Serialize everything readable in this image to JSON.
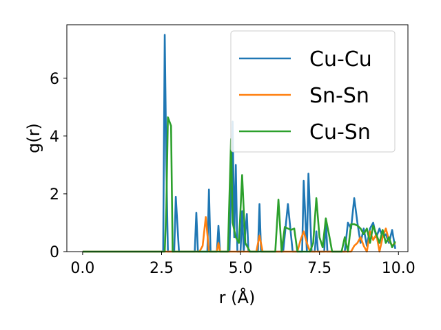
{
  "chart_data": {
    "type": "line",
    "xlabel": "r (Å)",
    "ylabel": "g(r)",
    "xlim": [
      -0.5,
      10.3
    ],
    "ylim": [
      0,
      7.85
    ],
    "xticks": [
      0.0,
      2.5,
      5.0,
      7.5,
      10.0
    ],
    "xtick_labels": [
      "0.0",
      "2.5",
      "5.0",
      "7.5",
      "10.0"
    ],
    "yticks": [
      0,
      2,
      4,
      6
    ],
    "ytick_labels": [
      "0",
      "2",
      "4",
      "6"
    ],
    "grid": false,
    "legend": "top-right",
    "series": [
      {
        "name": "Cu-Cu",
        "color": "#1f77b4",
        "points": [
          [
            0,
            0
          ],
          [
            2.5,
            0
          ],
          [
            2.55,
            0
          ],
          [
            2.6,
            7.5
          ],
          [
            2.65,
            3.0
          ],
          [
            2.7,
            0
          ],
          [
            2.9,
            0
          ],
          [
            2.95,
            1.9
          ],
          [
            3.05,
            0
          ],
          [
            3.55,
            0
          ],
          [
            3.6,
            1.35
          ],
          [
            3.65,
            0
          ],
          [
            3.95,
            0
          ],
          [
            4.0,
            2.15
          ],
          [
            4.05,
            0
          ],
          [
            4.25,
            0
          ],
          [
            4.3,
            0.9
          ],
          [
            4.35,
            0
          ],
          [
            4.65,
            0
          ],
          [
            4.75,
            4.5
          ],
          [
            4.8,
            0.5
          ],
          [
            4.85,
            3.0
          ],
          [
            4.9,
            0
          ],
          [
            5.0,
            0
          ],
          [
            5.05,
            1.4
          ],
          [
            5.1,
            0
          ],
          [
            5.2,
            1.3
          ],
          [
            5.25,
            0
          ],
          [
            5.55,
            0
          ],
          [
            5.6,
            1.65
          ],
          [
            5.65,
            0
          ],
          [
            6.35,
            0
          ],
          [
            6.5,
            1.65
          ],
          [
            6.65,
            0
          ],
          [
            6.95,
            0
          ],
          [
            7.0,
            2.45
          ],
          [
            7.1,
            0
          ],
          [
            7.15,
            2.7
          ],
          [
            7.25,
            0
          ],
          [
            7.35,
            0
          ],
          [
            7.4,
            0.7
          ],
          [
            7.45,
            0
          ],
          [
            7.65,
            0
          ],
          [
            7.7,
            1.1
          ],
          [
            7.75,
            0
          ],
          [
            8.3,
            0
          ],
          [
            8.4,
            1.0
          ],
          [
            8.5,
            0.8
          ],
          [
            8.6,
            1.85
          ],
          [
            8.7,
            1.0
          ],
          [
            8.8,
            0.3
          ],
          [
            8.9,
            0.8
          ],
          [
            9.0,
            0.2
          ],
          [
            9.1,
            0.8
          ],
          [
            9.2,
            1.0
          ],
          [
            9.3,
            0.5
          ],
          [
            9.4,
            0.8
          ],
          [
            9.5,
            0.5
          ],
          [
            9.6,
            0.6
          ],
          [
            9.7,
            0.3
          ],
          [
            9.8,
            0.75
          ],
          [
            9.9,
            0.1
          ]
        ]
      },
      {
        "name": "Sn-Sn",
        "color": "#ff7f0e",
        "points": [
          [
            0,
            0
          ],
          [
            3.7,
            0
          ],
          [
            3.8,
            0.2
          ],
          [
            3.9,
            1.2
          ],
          [
            4.0,
            0
          ],
          [
            4.25,
            0
          ],
          [
            4.3,
            0.3
          ],
          [
            4.35,
            0
          ],
          [
            5.5,
            0
          ],
          [
            5.6,
            0.55
          ],
          [
            5.7,
            0
          ],
          [
            6.8,
            0
          ],
          [
            6.9,
            0.4
          ],
          [
            7.0,
            0.7
          ],
          [
            7.1,
            0.3
          ],
          [
            7.2,
            0
          ],
          [
            8.5,
            0
          ],
          [
            8.6,
            0.2
          ],
          [
            8.7,
            0.3
          ],
          [
            8.8,
            0.5
          ],
          [
            8.9,
            0.2
          ],
          [
            9.0,
            0
          ],
          [
            9.1,
            0.7
          ],
          [
            9.2,
            0.4
          ],
          [
            9.3,
            0.6
          ],
          [
            9.4,
            0
          ],
          [
            9.5,
            0.5
          ],
          [
            9.6,
            0.8
          ],
          [
            9.7,
            0.4
          ],
          [
            9.8,
            0.2
          ],
          [
            9.9,
            0.3
          ]
        ]
      },
      {
        "name": "Cu-Sn",
        "color": "#2ca02c",
        "points": [
          [
            0,
            0
          ],
          [
            2.6,
            0
          ],
          [
            2.65,
            1.5
          ],
          [
            2.7,
            4.65
          ],
          [
            2.8,
            4.35
          ],
          [
            2.85,
            0
          ],
          [
            4.6,
            0
          ],
          [
            4.7,
            3.9
          ],
          [
            4.75,
            1.0
          ],
          [
            4.85,
            0.5
          ],
          [
            4.95,
            0.3
          ],
          [
            5.05,
            2.65
          ],
          [
            5.15,
            0.3
          ],
          [
            5.3,
            0
          ],
          [
            6.1,
            0
          ],
          [
            6.2,
            1.8
          ],
          [
            6.3,
            0
          ],
          [
            6.4,
            0.85
          ],
          [
            6.5,
            0.8
          ],
          [
            6.6,
            0.75
          ],
          [
            6.7,
            0.8
          ],
          [
            6.8,
            0
          ],
          [
            7.2,
            0
          ],
          [
            7.3,
            0.3
          ],
          [
            7.4,
            1.85
          ],
          [
            7.5,
            0.5
          ],
          [
            7.6,
            0.15
          ],
          [
            7.7,
            1.15
          ],
          [
            7.8,
            0.6
          ],
          [
            7.9,
            0
          ],
          [
            8.2,
            0
          ],
          [
            8.3,
            0.5
          ],
          [
            8.4,
            0
          ],
          [
            8.5,
            0.95
          ],
          [
            8.6,
            0.95
          ],
          [
            8.7,
            0.9
          ],
          [
            8.8,
            0.8
          ],
          [
            8.9,
            0.6
          ],
          [
            9.0,
            0.8
          ],
          [
            9.1,
            0.3
          ],
          [
            9.2,
            0.9
          ],
          [
            9.3,
            0.6
          ],
          [
            9.4,
            0.3
          ],
          [
            9.5,
            0.75
          ],
          [
            9.6,
            0.3
          ],
          [
            9.7,
            0.5
          ],
          [
            9.8,
            0.15
          ],
          [
            9.9,
            0.35
          ]
        ]
      }
    ]
  }
}
